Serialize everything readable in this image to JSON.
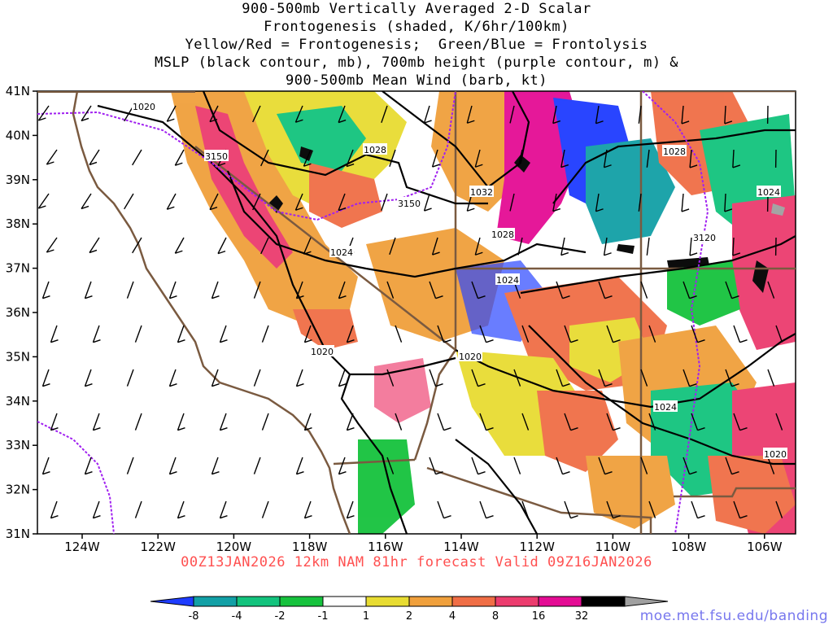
{
  "title_lines": [
    "900-500mb Vertically Averaged 2-D Scalar",
    "Frontogenesis (shaded, K/6hr/100km)",
    "Yellow/Red = Frontogenesis;  Green/Blue = Frontolysis",
    "MSLP (black contour, mb), 700mb height (purple contour, m) &",
    "900-500mb Mean Wind (barb, kt)"
  ],
  "lat_labels": [
    "41N",
    "40N",
    "39N",
    "38N",
    "37N",
    "36N",
    "35N",
    "34N",
    "33N",
    "32N",
    "31N"
  ],
  "lon_labels": [
    "124W",
    "122W",
    "120W",
    "118W",
    "116W",
    "114W",
    "112W",
    "110W",
    "108W",
    "106W"
  ],
  "mslp_labels": [
    "1020",
    "1028",
    "1032",
    "1028",
    "1024",
    "1024",
    "1020",
    "1020",
    "1028",
    "1024",
    "1024",
    "1020"
  ],
  "height_labels": [
    "3150",
    "3150",
    "3120"
  ],
  "valid_text": "00Z13JAN2026 12km NAM 81hr forecast Valid 09Z16JAN2026",
  "colorbar": {
    "labels": [
      "-8",
      "-4",
      "-2",
      "-1",
      "1",
      "2",
      "4",
      "8",
      "16",
      "32"
    ],
    "colors": [
      "#1e3cff",
      "#12a0a6",
      "#13c37d",
      "#16c23d",
      "#ffffff",
      "#e8dc32",
      "#f0a03c",
      "#f06e46",
      "#ec3c6e",
      "#e40c94",
      "#000000",
      "#a0a0a0"
    ]
  },
  "url": "moe.met.fsu.edu/banding",
  "colors": {
    "coast": "#7a5a40",
    "mslp": "#000000",
    "height": "#a020f0"
  },
  "icons": [
    "wind-barb-icon"
  ]
}
